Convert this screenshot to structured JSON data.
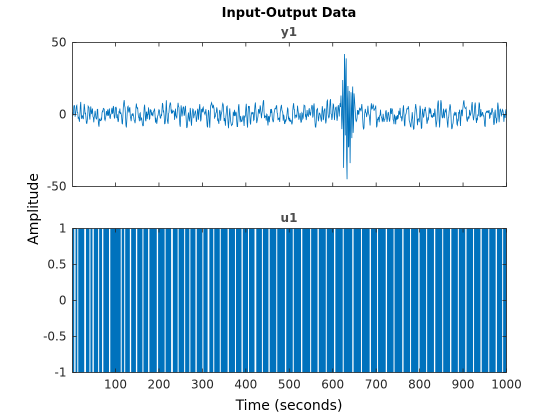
{
  "chart_data": {
    "title": "Input-Output Data",
    "xlabel": "Time (seconds)",
    "ylabel": "Amplitude",
    "color": "#0072bd",
    "xlim": [
      1,
      1000
    ],
    "xticks": [
      "100",
      "200",
      "300",
      "400",
      "500",
      "600",
      "700",
      "800",
      "900",
      "1000"
    ],
    "subplots": [
      {
        "title": "y1",
        "type": "line",
        "ylim": [
          -50,
          50
        ],
        "yticks": [
          "50",
          "0",
          "-50"
        ],
        "notes": "Noisy output oscillating roughly between -10 and 10, with a burst between x≈615 and x≈650 reaching about 45 and -45.",
        "anchor_points": [
          {
            "x": 1,
            "y": 2
          },
          {
            "x": 100,
            "y": 5
          },
          {
            "x": 200,
            "y": -3
          },
          {
            "x": 300,
            "y": 4
          },
          {
            "x": 380,
            "y": 12
          },
          {
            "x": 500,
            "y": -5
          },
          {
            "x": 600,
            "y": 5
          },
          {
            "x": 620,
            "y": 38
          },
          {
            "x": 625,
            "y": 45
          },
          {
            "x": 630,
            "y": -45
          },
          {
            "x": 640,
            "y": -30
          },
          {
            "x": 660,
            "y": 5
          },
          {
            "x": 700,
            "y": -6
          },
          {
            "x": 800,
            "y": 6
          },
          {
            "x": 900,
            "y": -4
          },
          {
            "x": 1000,
            "y": -6
          }
        ]
      },
      {
        "title": "u1",
        "type": "area",
        "ylim": [
          -1,
          1
        ],
        "yticks": [
          "1",
          "0.5",
          "0",
          "-0.5",
          "-1"
        ],
        "notes": "Binary input signal switching between -1 and 1, drawn as a filled area; white gaps are short intervals at -1.",
        "gaps": [
          [
            5,
            8
          ],
          [
            12,
            14
          ],
          [
            28,
            32
          ],
          [
            40,
            42
          ],
          [
            47,
            50
          ],
          [
            60,
            62
          ],
          [
            69,
            72
          ],
          [
            85,
            88
          ],
          [
            112,
            114
          ],
          [
            120,
            122
          ],
          [
            133,
            136
          ],
          [
            147,
            150
          ],
          [
            162,
            164
          ],
          [
            175,
            178
          ],
          [
            195,
            198
          ],
          [
            213,
            215
          ],
          [
            228,
            232
          ],
          [
            243,
            245
          ],
          [
            258,
            260
          ],
          [
            270,
            272
          ],
          [
            284,
            287
          ],
          [
            300,
            302
          ],
          [
            312,
            316
          ],
          [
            325,
            327
          ],
          [
            340,
            342
          ],
          [
            358,
            361
          ],
          [
            375,
            377
          ],
          [
            390,
            393
          ],
          [
            405,
            407
          ],
          [
            420,
            424
          ],
          [
            437,
            439
          ],
          [
            452,
            455
          ],
          [
            470,
            472
          ],
          [
            490,
            493
          ],
          [
            508,
            510
          ],
          [
            527,
            530
          ],
          [
            548,
            550
          ],
          [
            565,
            568
          ],
          [
            584,
            586
          ],
          [
            603,
            606
          ],
          [
            623,
            625
          ],
          [
            645,
            648
          ],
          [
            665,
            667
          ],
          [
            685,
            688
          ],
          [
            702,
            704
          ],
          [
            722,
            725
          ],
          [
            740,
            742
          ],
          [
            760,
            763
          ],
          [
            778,
            780
          ],
          [
            797,
            800
          ],
          [
            815,
            817
          ],
          [
            833,
            836
          ],
          [
            852,
            854
          ],
          [
            870,
            873
          ],
          [
            888,
            890
          ],
          [
            905,
            908
          ],
          [
            923,
            925
          ],
          [
            940,
            943
          ],
          [
            958,
            960
          ],
          [
            975,
            978
          ],
          [
            990,
            992
          ]
        ]
      }
    ]
  }
}
